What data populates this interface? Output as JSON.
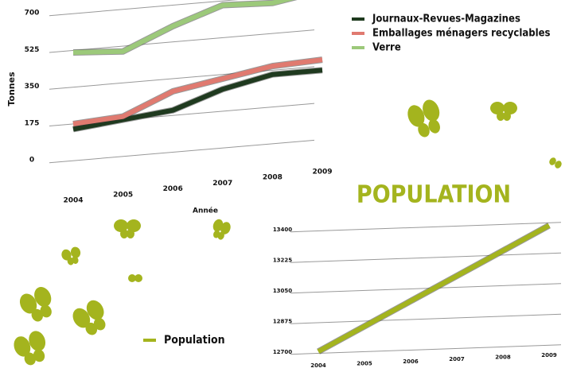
{
  "chart_data": [
    {
      "type": "line",
      "xlabel": "Année",
      "ylabel": "Tonnes",
      "categories": [
        "2004",
        "2005",
        "2006",
        "2007",
        "2008",
        "2009"
      ],
      "ylim": [
        0,
        700
      ],
      "yticks": [
        0,
        175,
        350,
        525,
        700
      ],
      "grid": true,
      "legend": "top-right",
      "series": [
        {
          "name": "Journaux-Revues-Magazines",
          "color": "#1f3a1f",
          "values": [
            150,
            175,
            200,
            280,
            330,
            330
          ]
        },
        {
          "name": "Emballages ménagers recyclables",
          "color": "#e07a70",
          "values": [
            175,
            190,
            290,
            330,
            370,
            380
          ]
        },
        {
          "name": "Verre",
          "color": "#9cc97a",
          "values": [
            515,
            500,
            600,
            680,
            670,
            710
          ]
        }
      ]
    },
    {
      "type": "line",
      "title": "POPULATION",
      "categories": [
        "2004",
        "2005",
        "2006",
        "2007",
        "2008",
        "2009"
      ],
      "ylim": [
        12700,
        13400
      ],
      "yticks": [
        12700,
        12875,
        13050,
        13225,
        13400
      ],
      "grid": true,
      "legend": "bottom-left",
      "series": [
        {
          "name": "Population",
          "color": "#a4b41e",
          "values": [
            12710,
            12845,
            12980,
            13115,
            13250,
            13385
          ]
        }
      ]
    }
  ]
}
